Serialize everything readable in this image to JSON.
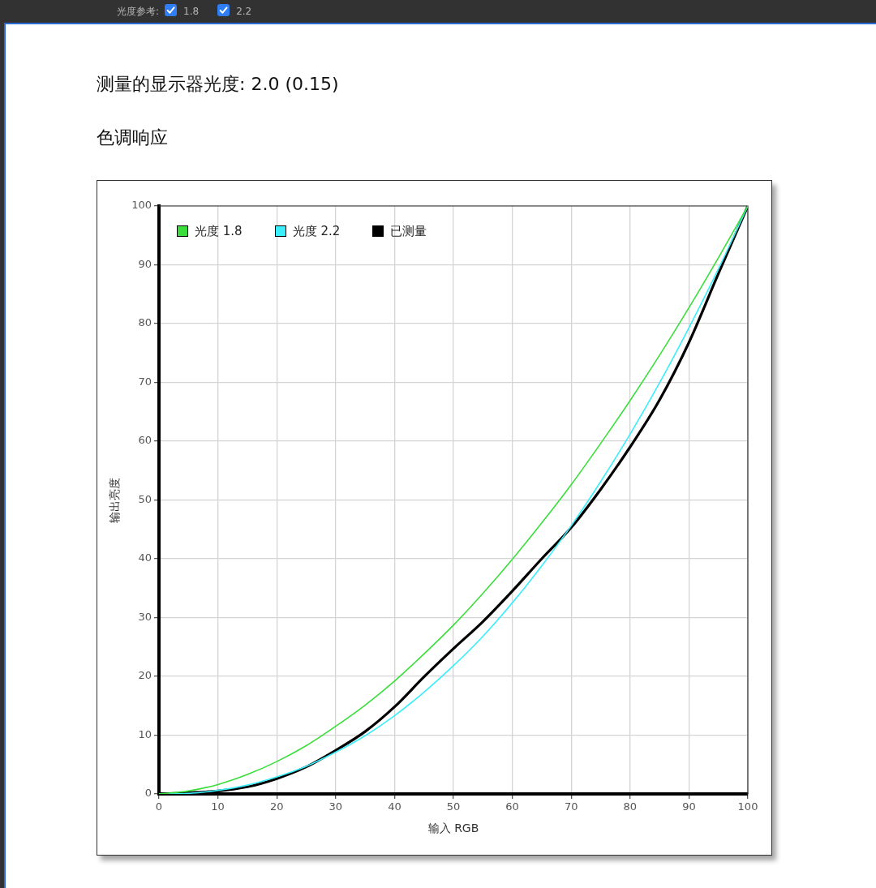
{
  "chart_data": {
    "type": "line",
    "title": "测量的显示器光度: 2.0 (0.15)",
    "subtitle": "色调响应",
    "xlabel": "输入 RGB",
    "ylabel": "输出亮度",
    "annotations": [
      "光度参考:",
      "1.8",
      "2.2"
    ],
    "x": [
      0,
      5,
      10,
      15,
      20,
      25,
      30,
      35,
      40,
      45,
      50,
      55,
      60,
      65,
      70,
      75,
      80,
      85,
      90,
      95,
      100
    ],
    "series": [
      {
        "name": "光度 1.8",
        "color": "#3ade3a",
        "values": [
          0,
          0.5,
          1.6,
          3.3,
          5.5,
          8.2,
          11.5,
          15.1,
          19.2,
          23.8,
          28.7,
          34.1,
          39.9,
          46.1,
          52.6,
          59.6,
          66.9,
          74.6,
          82.7,
          91.2,
          100
        ]
      },
      {
        "name": "光度 2.2",
        "color": "#3aeefa",
        "values": [
          0,
          0.1,
          0.6,
          1.5,
          2.9,
          4.7,
          7.1,
          9.9,
          13.3,
          17.3,
          21.8,
          26.8,
          32.5,
          38.8,
          45.6,
          53.1,
          61.2,
          69.9,
          79.3,
          89.3,
          100
        ]
      },
      {
        "name": "已测量",
        "color": "#000000",
        "values": [
          0,
          0.2,
          0.5,
          1.2,
          2.6,
          4.6,
          7.4,
          10.6,
          14.8,
          19.9,
          24.7,
          29.3,
          34.5,
          40.0,
          45.3,
          51.8,
          59.0,
          67.0,
          76.8,
          88.5,
          100
        ]
      }
    ],
    "xlim": [
      0,
      100
    ],
    "ylim": [
      0,
      100
    ],
    "xticks": [
      0,
      10,
      20,
      30,
      40,
      50,
      60,
      70,
      80,
      90,
      100
    ],
    "yticks": [
      0,
      10,
      20,
      30,
      40,
      50,
      60,
      70,
      80,
      90,
      100
    ],
    "grid": true,
    "legend": "top left",
    "marker": "none",
    "line_style": "solid"
  }
}
